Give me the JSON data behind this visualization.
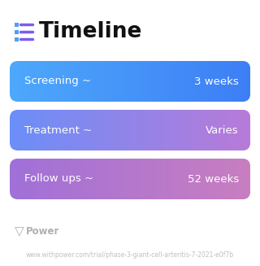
{
  "title": "Timeline",
  "title_fontsize": 19,
  "title_color": "#111111",
  "background_color": "#ffffff",
  "icon_color": "#7b5cf0",
  "icon_dot_color": "#4f9ef8",
  "rows": [
    {
      "label": "Screening ~",
      "value": "3 weeks",
      "color_left": "#4da8fb",
      "color_right": "#3d7ef5"
    },
    {
      "label": "Treatment ~",
      "value": "Varies",
      "color_left": "#6b8ef8",
      "color_right": "#b87ad8"
    },
    {
      "label": "Follow ups ~",
      "value": "52 weeks",
      "color_left": "#a070d8",
      "color_right": "#c87ec0"
    }
  ],
  "row_text_color": "#ffffff",
  "row_label_fontsize": 9.5,
  "row_value_fontsize": 9.5,
  "footer_text": "Power",
  "footer_color": "#b0b0b0",
  "footer_fontsize": 8.5,
  "footer_url": "www.withpower.com/trial/phase-3-giant-cell-arteritis-7-2021-e0f7b",
  "footer_url_fontsize": 5.5
}
